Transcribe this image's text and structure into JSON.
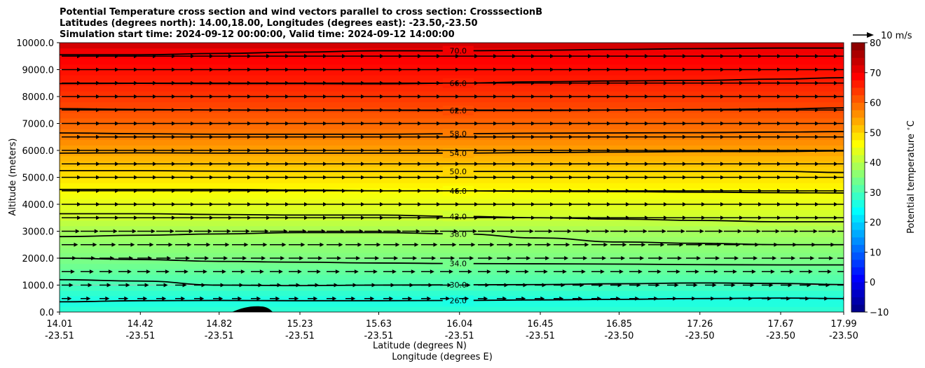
{
  "chart_data": {
    "type": "contourf",
    "title_lines": [
      "Potential Temperature cross section and wind vectors parallel to cross section: CrosssectionB",
      "Latitudes (degrees north): 14.00,18.00, Longitudes (degrees east): -23.50,-23.50",
      "Simulation start time: 2024-09-12 00:00:00, Valid time: 2024-09-12 14:00:00"
    ],
    "ylabel": "Altitude (meters)",
    "xlabel_lat": "Latitude (degrees N)",
    "xlabel_lon": "Longitude (degrees E)",
    "ylim": [
      0,
      10000
    ],
    "y_ticks": [
      "0.0",
      "1000.0",
      "2000.0",
      "3000.0",
      "4000.0",
      "5000.0",
      "6000.0",
      "7000.0",
      "8000.0",
      "9000.0",
      "10000.0"
    ],
    "y_tick_values": [
      0,
      1000,
      2000,
      3000,
      4000,
      5000,
      6000,
      7000,
      8000,
      9000,
      10000
    ],
    "xlim": [
      14.01,
      17.99
    ],
    "x_tick_positions": [
      14.01,
      14.42,
      14.82,
      15.23,
      15.63,
      16.04,
      16.45,
      16.85,
      17.26,
      17.67,
      17.99
    ],
    "x_ticks_lat": [
      "14.01",
      "14.42",
      "14.82",
      "15.23",
      "15.63",
      "16.04",
      "16.45",
      "16.85",
      "17.26",
      "17.67",
      "17.99"
    ],
    "x_ticks_lon": [
      "-23.51",
      "-23.51",
      "-23.51",
      "-23.51",
      "-23.51",
      "-23.51",
      "-23.51",
      "-23.50",
      "-23.50",
      "-23.50",
      "-23.50"
    ],
    "colorbar": {
      "label": "Potential temperature $^\\circ$C",
      "range": [
        -10,
        80
      ],
      "ticks": [
        "−10",
        "0",
        "10",
        "20",
        "30",
        "40",
        "50",
        "60",
        "70",
        "80"
      ],
      "tick_values": [
        -10,
        0,
        10,
        20,
        30,
        40,
        50,
        60,
        70,
        80
      ],
      "colormap": "jet"
    },
    "vector_key": {
      "label": "10 m/s"
    },
    "surface_theta": 28.0,
    "theta_top": 74.0,
    "grid": true,
    "contours": [
      {
        "level": 26.0,
        "label": "26.0",
        "alts": [
          380,
          420,
          430,
          420,
          420,
          430,
          450,
          470,
          500,
          520,
          500
        ]
      },
      {
        "level": 30.0,
        "label": "30.0",
        "alts": [
          1200,
          1150,
          1000,
          980,
          1000,
          1010,
          1020,
          1050,
          1080,
          1060,
          1020
        ]
      },
      {
        "level": 34.0,
        "label": "34.0",
        "alts": [
          2000,
          1950,
          1880,
          1850,
          1820,
          1800,
          1790,
          1780,
          1760,
          1750,
          1750
        ]
      },
      {
        "level": 38.0,
        "label": "38.0",
        "alts": [
          2800,
          2850,
          2900,
          2950,
          2950,
          2900,
          2750,
          2600,
          2550,
          2500,
          2500
        ]
      },
      {
        "level": 42.0,
        "label": "42.0",
        "alts": [
          3650,
          3650,
          3620,
          3600,
          3600,
          3550,
          3500,
          3450,
          3400,
          3350,
          3350
        ]
      },
      {
        "level": 46.0,
        "label": "46.0",
        "alts": [
          4550,
          4550,
          4550,
          4530,
          4500,
          4500,
          4480,
          4470,
          4450,
          4430,
          4420
        ]
      },
      {
        "level": 50.0,
        "label": "50.0",
        "alts": [
          5250,
          5250,
          5230,
          5220,
          5220,
          5220,
          5220,
          5220,
          5220,
          5220,
          5180
        ]
      },
      {
        "level": 54.0,
        "label": "54.0",
        "alts": [
          5900,
          5910,
          5900,
          5900,
          5900,
          5900,
          5920,
          5940,
          5960,
          5960,
          5980
        ]
      },
      {
        "level": 58.0,
        "label": "58.0",
        "alts": [
          6650,
          6620,
          6600,
          6600,
          6600,
          6620,
          6640,
          6650,
          6660,
          6680,
          6700
        ]
      },
      {
        "level": 62.0,
        "label": "62.0",
        "alts": [
          7550,
          7520,
          7500,
          7490,
          7490,
          7480,
          7480,
          7500,
          7520,
          7540,
          7580
        ]
      },
      {
        "level": 66.0,
        "label": "66.0",
        "alts": [
          8480,
          8490,
          8480,
          8480,
          8470,
          8500,
          8550,
          8580,
          8600,
          8650,
          8700
        ]
      },
      {
        "level": 70.0,
        "label": "70.0",
        "alts": [
          9550,
          9550,
          9600,
          9650,
          9700,
          9700,
          9720,
          9750,
          9780,
          9800,
          9800
        ]
      }
    ]
  }
}
